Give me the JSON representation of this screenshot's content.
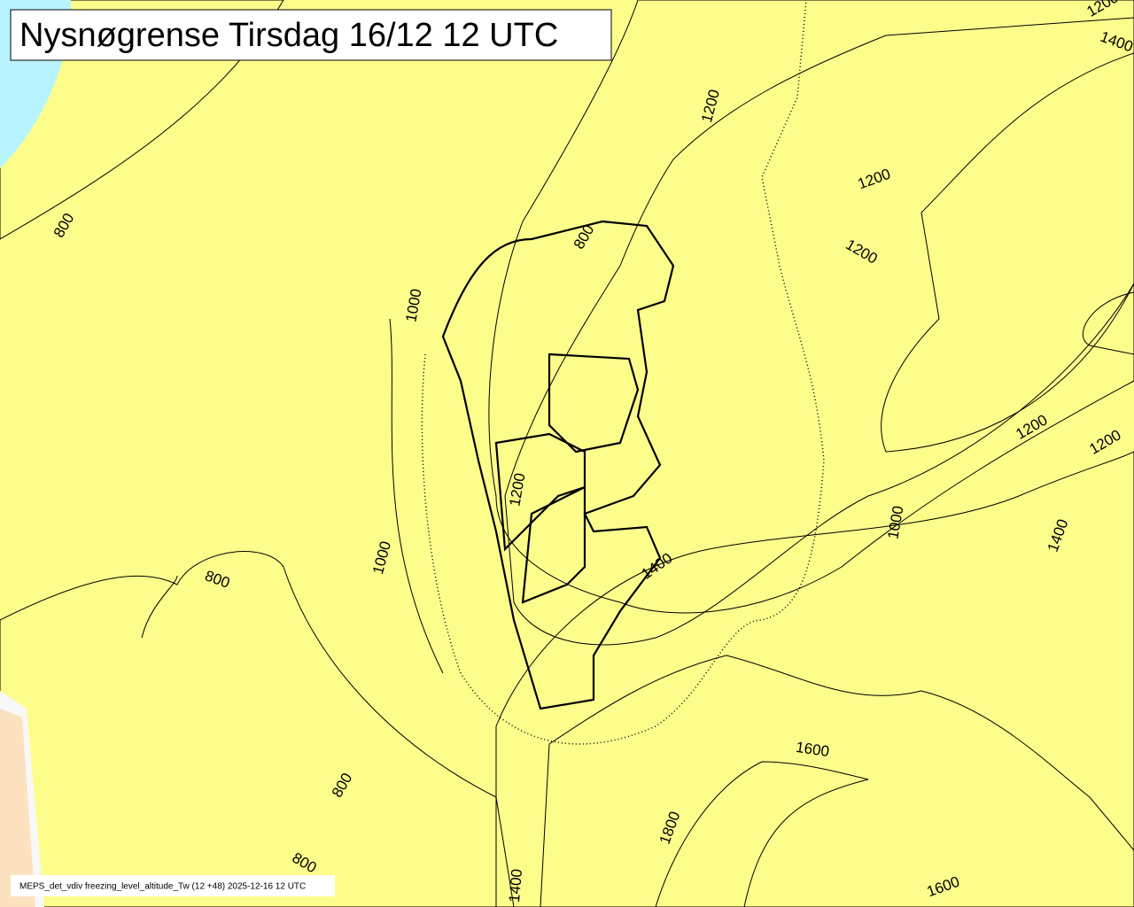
{
  "header": {
    "title": "Nysnøgrense Tirsdag 16/12 12 UTC"
  },
  "footer": {
    "text": "MEPS_det_vdiv freezing_level_altitude_Tw (12 +48) 2025-12-16 12 UTC"
  },
  "contour_labels": [
    800,
    1000,
    800,
    1200,
    1200,
    1200,
    1200,
    1200,
    1200,
    1000,
    1400,
    800,
    1000,
    1400,
    1600,
    800,
    1800,
    800,
    1400,
    1600,
    1200,
    1400
  ]
}
